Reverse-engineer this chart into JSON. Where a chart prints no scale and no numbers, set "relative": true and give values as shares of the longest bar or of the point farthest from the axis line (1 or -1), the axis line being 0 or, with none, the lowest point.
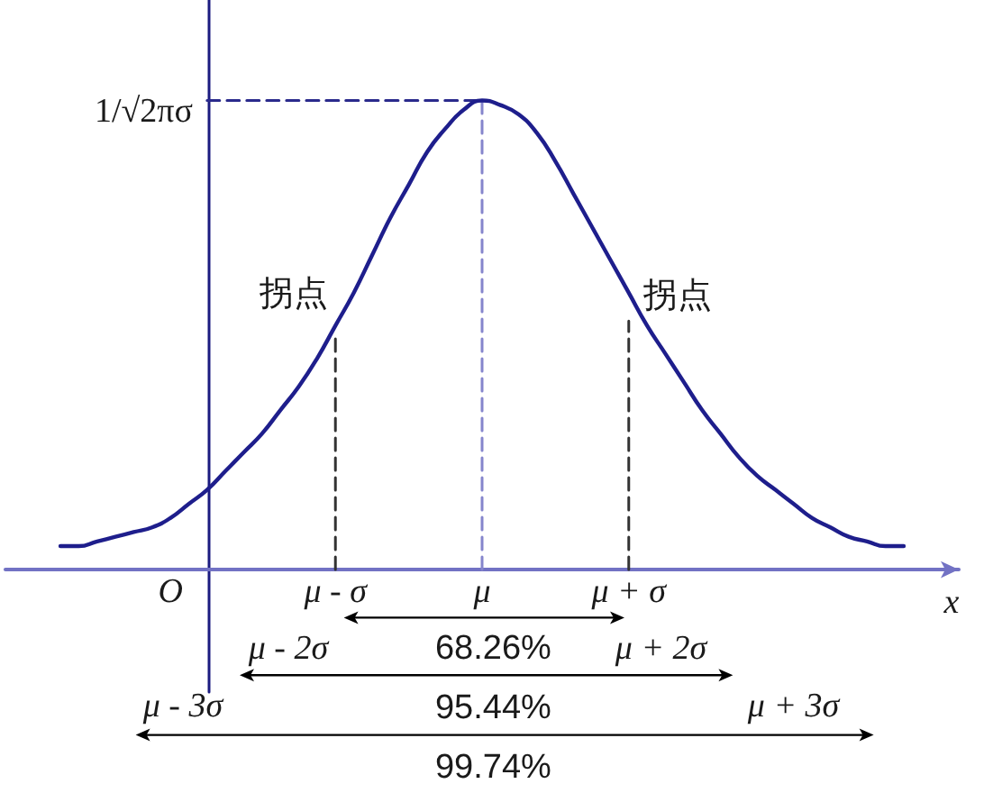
{
  "chart_data": {
    "type": "line",
    "relative": true,
    "xlabel": "x",
    "categories": [
      null,
      null,
      null,
      null,
      null,
      null,
      null,
      null,
      null,
      "O",
      null,
      null,
      null,
      null,
      null,
      null,
      null,
      null,
      "μ - σ",
      null,
      null,
      null,
      null,
      null,
      null,
      null,
      "μ",
      null,
      null,
      null,
      null,
      null,
      null,
      null,
      "μ + σ",
      null,
      null,
      null,
      null,
      null,
      null,
      null,
      null,
      null,
      null,
      null,
      null,
      null,
      null,
      null,
      null,
      null,
      null
    ],
    "series": [
      {
        "color": "#1e1e8c",
        "values": [
          null,
          null,
          null,
          0.05,
          0.05,
          0.06,
          0.07,
          0.08,
          0.09,
          0.11,
          0.14,
          0.17,
          0.21,
          0.25,
          0.29,
          0.34,
          0.39,
          0.45,
          0.52,
          0.59,
          0.67,
          0.75,
          0.82,
          0.89,
          0.94,
          0.98,
          1,
          0.99,
          0.97,
          0.93,
          0.87,
          0.8,
          0.73,
          0.66,
          0.59,
          0.52,
          0.46,
          0.4,
          0.34,
          0.29,
          0.24,
          0.2,
          0.17,
          0.14,
          0.11,
          0.09,
          0.07,
          0.06,
          0.05,
          0.05,
          null,
          null,
          null
        ]
      },
      {
        "color": "#2a2a8c",
        "line_style": "dashed",
        "values": [
          null,
          null,
          null,
          null,
          null,
          null,
          null,
          null,
          null,
          null,
          null,
          1,
          1,
          1,
          1,
          1,
          1,
          1,
          1,
          1,
          1,
          1,
          1,
          1,
          1,
          1,
          1,
          null,
          null,
          null,
          null,
          null,
          null,
          null,
          null,
          null,
          null,
          null,
          null,
          null,
          null,
          null,
          null,
          null,
          null,
          null,
          null,
          null,
          null,
          null,
          null,
          null,
          null
        ]
      },
      {
        "x": [
          "μ",
          "μ"
        ],
        "values": [
          0,
          1
        ],
        "color": "#8585cc",
        "line_style": "dashed"
      },
      {
        "x": [
          "μ - σ",
          "μ - σ"
        ],
        "values": [
          0,
          0.5
        ],
        "color": "#333333",
        "line_style": "dashed"
      },
      {
        "x": [
          "μ + σ",
          "μ + σ"
        ],
        "values": [
          0,
          0.53
        ],
        "color": "#333333",
        "line_style": "dashed"
      }
    ],
    "line_style": "solid",
    "marker": "none",
    "grid": false,
    "annotations": [
      "1/√2πσ",
      {
        "text": "拐点",
        "x": "μ - σ",
        "y": 0.52
      },
      {
        "text": "拐点",
        "x": "μ + σ",
        "y": 0.59
      },
      "μ - 2σ",
      "68.26%",
      "μ + 2σ",
      "μ - 3σ",
      "95.44%",
      "μ + 3σ",
      "99.74%"
    ]
  }
}
